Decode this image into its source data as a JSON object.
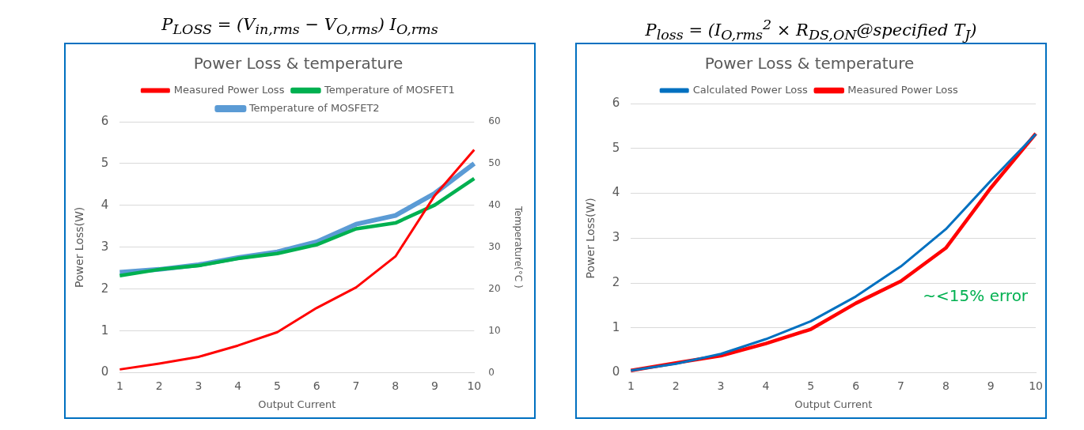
{
  "chart_data": [
    {
      "type": "line",
      "subtitle": "P$_{LOSS}$ = (V$_{in,rms}$ − V$_{O,rms}$) I$_{O,rms}$",
      "title": "Power Loss & temperature",
      "xlabel": "Output Current",
      "ylabel": "Power Loss(W)",
      "y2label": "Temperature(°C )",
      "categories": [
        "1",
        "2",
        "3",
        "4",
        "5",
        "6",
        "7",
        "8",
        "9",
        "10"
      ],
      "series": [
        {
          "name": "Measured Power Loss",
          "color": "#ff0000",
          "values": [
            0.08,
            0.22,
            0.38,
            0.65,
            0.97,
            1.55,
            2.04,
            2.78,
            4.24,
            5.33
          ]
        },
        {
          "name": "Temperature of MOSFET1",
          "color": "#00b050",
          "axis": "y2",
          "values": [
            23.2,
            24.7,
            25.6,
            27.3,
            28.5,
            30.6,
            34.4,
            35.8,
            40.1,
            46.4
          ]
        },
        {
          "name": "Temperature of MOSFET2",
          "color": "#5b9bd5",
          "axis": "y2",
          "values": [
            24.0,
            24.7,
            25.8,
            27.5,
            28.9,
            31.3,
            35.5,
            37.6,
            42.9,
            50.0
          ]
        }
      ],
      "ylim": [
        0,
        6
      ],
      "yticks": [
        0,
        1,
        2,
        3,
        4,
        5,
        6
      ],
      "y2lim": [
        0,
        60
      ],
      "y2ticks": [
        0,
        10,
        20,
        30,
        40,
        50,
        60
      ],
      "grid": "y",
      "legend": "top",
      "marker": "none",
      "line_style": "solid"
    },
    {
      "type": "line",
      "subtitle": "P$_{loss}$ = (I$_{O,rms}$$^{2}$ × R$_{DS,ON}$@specified T$_{J}$)",
      "title": "Power Loss & temperature",
      "xlabel": "Output Current",
      "ylabel": "Power Loss(W)",
      "categories": [
        "1",
        "2",
        "3",
        "4",
        "5",
        "6",
        "7",
        "8",
        "9",
        "10"
      ],
      "series": [
        {
          "name": "Calculated Power Loss",
          "color": "#0070c0",
          "values": [
            0.05,
            0.2,
            0.42,
            0.75,
            1.15,
            1.7,
            2.37,
            3.2,
            4.28,
            5.32
          ]
        },
        {
          "name": "Measured Power Loss",
          "color": "#ff0000",
          "values": [
            0.05,
            0.22,
            0.38,
            0.65,
            0.97,
            1.55,
            2.04,
            2.78,
            4.12,
            5.33
          ]
        }
      ],
      "ylim": [
        0,
        6
      ],
      "yticks": [
        0,
        1,
        2,
        3,
        4,
        5,
        6
      ],
      "annotations": [
        "~<15% error"
      ],
      "grid": "y",
      "legend": "top",
      "marker": "none",
      "line_style": "solid"
    }
  ]
}
